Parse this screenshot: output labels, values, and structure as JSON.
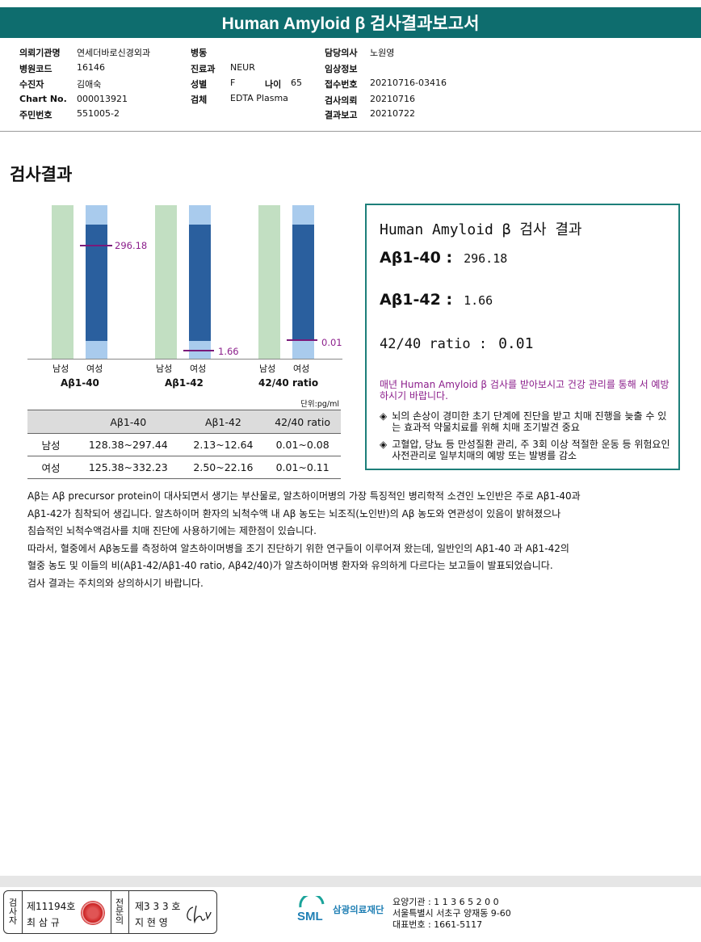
{
  "header": {
    "title": "Human Amyloid β 검사결과보고서"
  },
  "info": {
    "requesting_institution": {
      "label": "의뢰기관명",
      "value": "연세더바로신경외과"
    },
    "hospital_code": {
      "label": "병원코드",
      "value": "16146"
    },
    "patient": {
      "label": "수진자",
      "value": "김애숙"
    },
    "chart_no": {
      "label": "Chart No.",
      "value": "000013921"
    },
    "resident_no": {
      "label": "주민번호",
      "value": "551005-2"
    },
    "ward": {
      "label": "병동",
      "value": ""
    },
    "department": {
      "label": "진료과",
      "value": "NEUR"
    },
    "sex": {
      "label": "성별",
      "value": "F"
    },
    "age": {
      "label": "나이",
      "value": "65"
    },
    "specimen": {
      "label": "검체",
      "value": "EDTA Plasma"
    },
    "doctor": {
      "label": "담당의사",
      "value": "노원영"
    },
    "clinical_info": {
      "label": "임상정보",
      "value": ""
    },
    "receipt_no": {
      "label": "접수번호",
      "value": "20210716-03416"
    },
    "request_date": {
      "label": "검사의뢰",
      "value": "20210716"
    },
    "report_date": {
      "label": "결과보고",
      "value": "20210722"
    }
  },
  "section_title": "검사결과",
  "chart_data": {
    "type": "bar",
    "categories": [
      "Aβ1-40",
      "Aβ1-42",
      "42/40 ratio"
    ],
    "legend_labels": [
      "남성",
      "여성"
    ],
    "series": [
      {
        "name": "남성",
        "color": "#c2dfc2"
      },
      {
        "name": "여성 reference",
        "color": "#a9cbed"
      },
      {
        "name": "여성",
        "color": "#2a5f9e"
      }
    ],
    "patient_values": [
      "296.18",
      "1.66",
      "0.01"
    ],
    "marker_color": "#7a1a7a",
    "unit": "단위:pg/ml"
  },
  "table": {
    "headers": [
      "",
      "Aβ1-40",
      "Aβ1-42",
      "42/40 ratio"
    ],
    "rows": [
      [
        "남성",
        "128.38~297.44",
        "2.13~12.64",
        "0.01~0.08"
      ],
      [
        "여성",
        "125.38~332.23",
        "2.50~22.16",
        "0.01~0.11"
      ]
    ]
  },
  "result_box": {
    "title": "Human Amyloid β 검사 결과",
    "items": [
      {
        "label": "Aβ1-40 :",
        "value": "296.18"
      },
      {
        "label": "Aβ1-42 :",
        "value": "1.66"
      },
      {
        "label": "42/40 ratio :",
        "value": "0.01"
      }
    ],
    "note": "매년 Human Amyloid β 검사를 받아보시고 건강 관리를 통해 서 예방하시기 바랍니다.",
    "bullets": [
      "뇌의 손상이 경미한 초기 단계에 진단을 받고 치매 진행을 늦출 수 있는 효과적 약물치료를 위해 치매 조기발견 중요",
      "고혈압, 당뇨 등 만성질환 관리, 주 3회 이상 적절한 운동 등 위험요인 사전관리로 일부치매의 예방 또는 발병를 감소"
    ]
  },
  "paragraphs": [
    "Aβ는 Aβ precursor protein이 대사되면서 생기는 부산물로, 알츠하이머병의 가장 특징적인 병리학적 소견인 노인반은 주로 Aβ1-40과",
    "Aβ1-42가 침착되어 생깁니다. 알츠하이머 환자의 뇌척수액 내 Aβ 농도는 뇌조직(노인반)의 Aβ 농도와 연관성이 있음이 밝혀졌으나",
    "침습적인 뇌척수액검사를 치매 진단에 사용하기에는 제한점이 있습니다.",
    "따라서, 혈중에서 Aβ농도를 측정하여 알츠하이머병을 조기 진단하기 위한 연구들이 이루어져 왔는데, 일반인의 Aβ1-40 과 Aβ1-42의",
    "혈중 농도 및 이들의 비(Aβ1-42/Aβ1-40 ratio, Aβ42/40)가 알츠하이머병 환자와 유의하게 다르다는 보고들이 발표되었습니다.",
    "검사 결과는 주치의와 상의하시기 바랍니다."
  ],
  "footer": {
    "inspector_label": "검사자",
    "inspector_no": "제11194호",
    "inspector_name": "최 삼 규",
    "specialist_label": "전문의",
    "specialist_no": "제3 3 3 호",
    "specialist_name": "지 현 영",
    "org_logo": "SML",
    "org_name": "삼광의료재단",
    "org_code": "요양기관 : 1 1 3 6 5 2 0 0",
    "address": "서울특별시 서초구 양재동 9-60",
    "phone": "대표번호 : 1661-5117"
  }
}
